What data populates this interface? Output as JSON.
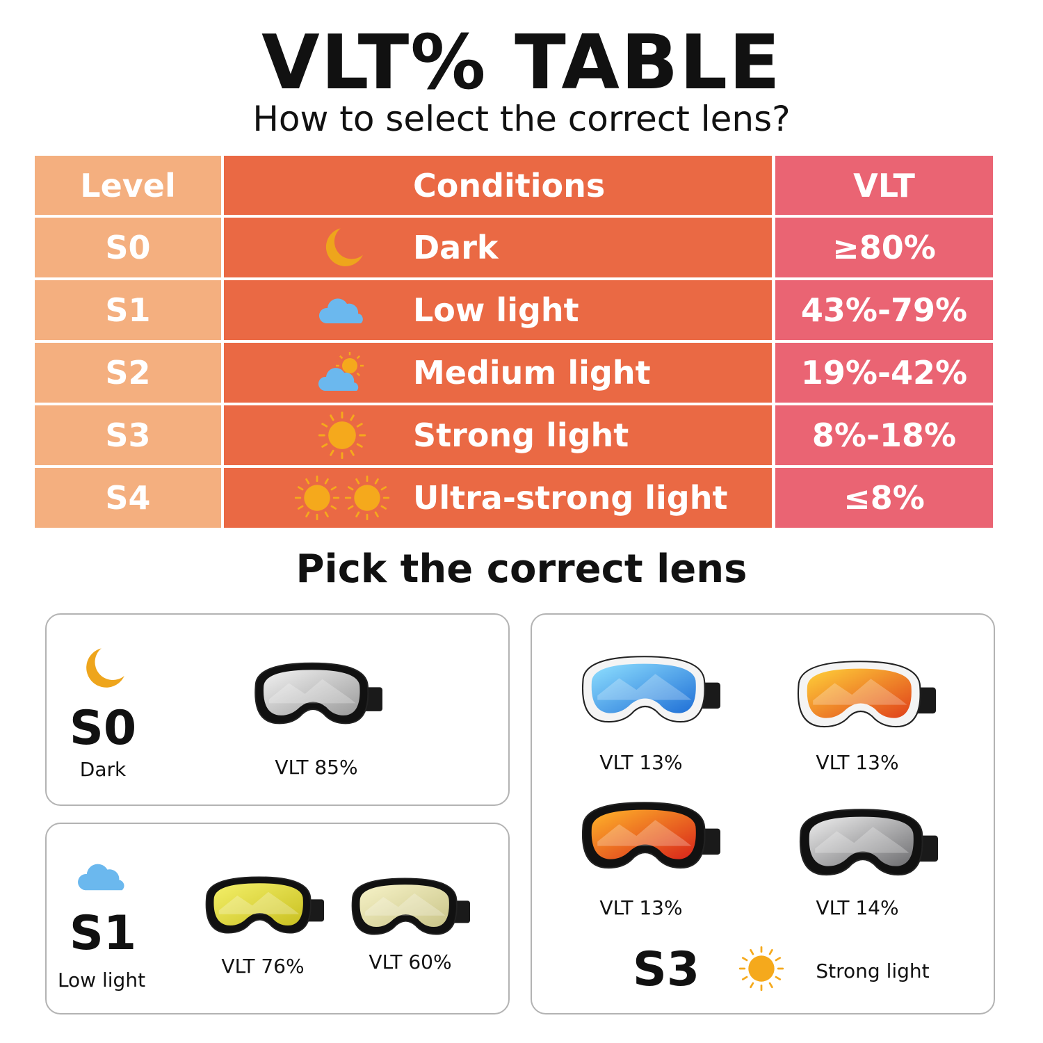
{
  "title": "VLT% TABLE",
  "subtitle": "How to select the correct lens?",
  "table": {
    "headers": [
      "Level",
      "Conditions",
      "VLT"
    ],
    "rows": [
      {
        "level": "S0",
        "icon": "moon-icon",
        "condition": "Dark",
        "vlt": "≥80%"
      },
      {
        "level": "S1",
        "icon": "cloud-icon",
        "condition": "Low light",
        "vlt": "43%-79%"
      },
      {
        "level": "S2",
        "icon": "cloud-sun-icon",
        "condition": "Medium light",
        "vlt": "19%-42%"
      },
      {
        "level": "S3",
        "icon": "sun-icon",
        "condition": "Strong light",
        "vlt": "8%-18%"
      },
      {
        "level": "S4",
        "icon": "double-sun-icon",
        "condition": "Ultra-strong light",
        "vlt": "≤8%"
      }
    ],
    "colors": {
      "level": "#F4AF7F",
      "conditions": "#EA6944",
      "vlt": "#EA6473"
    }
  },
  "pick_title": "Pick the correct lens",
  "cards": {
    "s0": {
      "level": "S0",
      "condition": "Dark",
      "goggles": [
        {
          "vlt": "VLT 85%",
          "frame": "#111111",
          "lens": [
            "#f2f2f2",
            "#9a9a9a"
          ]
        }
      ]
    },
    "s1": {
      "level": "S1",
      "condition": "Low light",
      "goggles": [
        {
          "vlt": "VLT 76%",
          "frame": "#111111",
          "lens": [
            "#f4f06a",
            "#c9c020"
          ]
        },
        {
          "vlt": "VLT 60%",
          "frame": "#111111",
          "lens": [
            "#f7f3c8",
            "#c9c488"
          ]
        }
      ]
    },
    "s3": {
      "level": "S3",
      "condition": "Strong light",
      "goggles": [
        {
          "vlt": "VLT 13%",
          "frame": "#f4f4f4",
          "lens": [
            "#8fe0ff",
            "#1f6fd6"
          ]
        },
        {
          "vlt": "VLT 13%",
          "frame": "#f4f4f4",
          "lens": [
            "#ffd23a",
            "#e0401a"
          ]
        },
        {
          "vlt": "VLT 13%",
          "frame": "#111111",
          "lens": [
            "#ffb52a",
            "#d8241a"
          ]
        },
        {
          "vlt": "VLT 14%",
          "frame": "#111111",
          "lens": [
            "#eeeeee",
            "#6d6d70"
          ]
        }
      ]
    }
  },
  "icon_colors": {
    "sun": "#F5A91C",
    "moon": "#EEA51C",
    "cloud": "#6BB8EE"
  }
}
